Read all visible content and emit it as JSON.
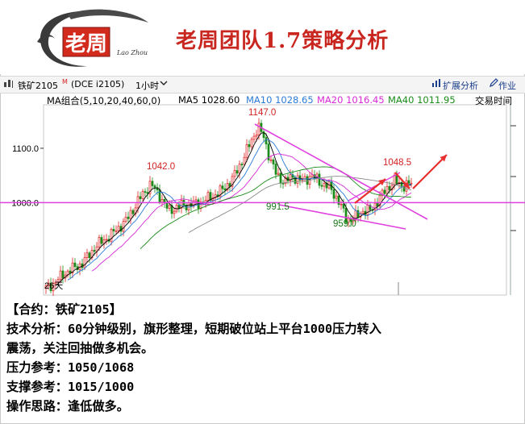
{
  "header": {
    "logo_text": "老周",
    "logo_signature": "Lao Zhou",
    "title": "老周团队1.7策略分析"
  },
  "toolbar": {
    "contract": "铁矿2105",
    "contract_mark": "M",
    "exchange": "(DCE i2105)",
    "period": "1小时",
    "expand_analysis": "扩展分析",
    "homework": "作业"
  },
  "ma_legend": {
    "group": "MA组合(5,10,20,40,60,0)",
    "items": [
      {
        "label": "MA5 1028.60",
        "color": "#000000"
      },
      {
        "label": "MA10 1028.65",
        "color": "#2a7bd6"
      },
      {
        "label": "MA20 1016.45",
        "color": "#d62ad6"
      },
      {
        "label": "MA40 1011.95",
        "color": "#1a8c1a"
      }
    ],
    "trade_time": "交易时间"
  },
  "chart_data": {
    "type": "candlestick",
    "y_ticks": [
      1000.0,
      1100.0
    ],
    "y_tick_labels": [
      "1000.0",
      "1100.0"
    ],
    "ylim": [
      830,
      1180
    ],
    "x_label_left": "26天",
    "horizontal_level": 1000,
    "annotations": [
      {
        "text": "1147.0",
        "value": 1147.0
      },
      {
        "text": "1042.0",
        "value": 1042.0
      },
      {
        "text": "991.5",
        "value": 991.5
      },
      {
        "text": "959.0",
        "value": 959.0
      },
      {
        "text": "1048.5",
        "value": 1048.5
      }
    ],
    "colors": {
      "up": "#e02020",
      "down": "#1a8c1a",
      "trendline": "#e040e0",
      "arrow": "#e83030"
    }
  },
  "info": {
    "contract": "【合约：铁矿2105】",
    "analysis_1": "技术分析：60分钟级别，旗形整理，短期破位站上平台1000压力转入",
    "analysis_2": "震荡，关注回抽做多机会。",
    "resistance": "压力参考：1050/1068",
    "support": "支撑参考：1015/1000",
    "strategy": "操作思路：逢低做多。"
  }
}
